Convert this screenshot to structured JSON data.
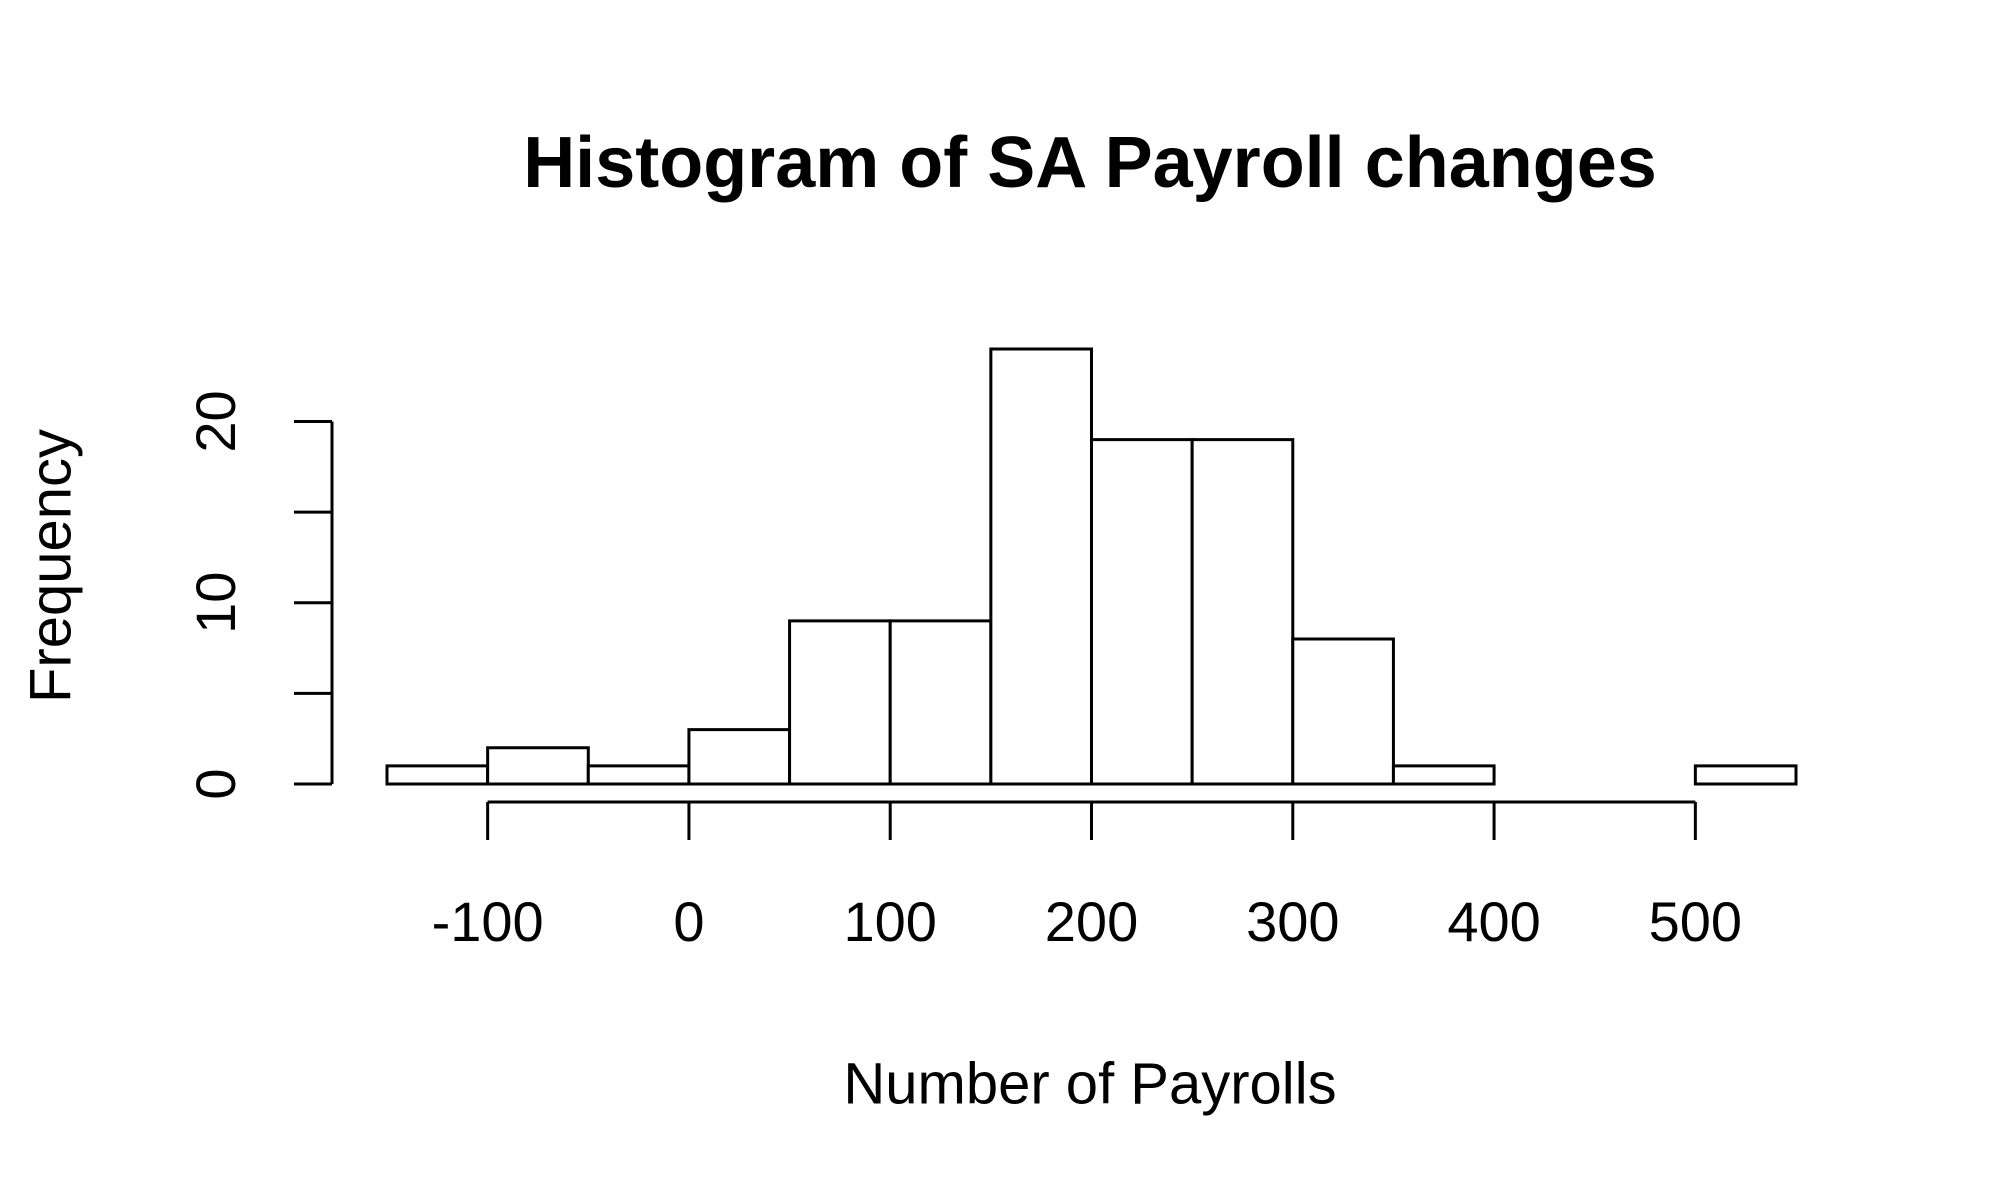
{
  "chart_data": {
    "type": "histogram",
    "title": "Histogram of SA Payroll changes",
    "x_label": "Number of Payrolls",
    "y_label": "Frequency",
    "bins": [
      -150,
      -100,
      -50,
      0,
      50,
      100,
      150,
      200,
      250,
      300,
      350,
      400,
      450,
      500,
      550
    ],
    "values": [
      1,
      2,
      1,
      3,
      9,
      9,
      24,
      19,
      19,
      8,
      1,
      0,
      0,
      1
    ],
    "color": "#ffffff",
    "edge_color": "#000000",
    "xlim": [
      -150,
      550
    ],
    "xticks": [
      -100,
      0,
      100,
      200,
      300,
      400,
      500
    ],
    "ylim": [
      0,
      24
    ],
    "yticks": [
      0,
      {
        "value": 5,
        "label": null
      },
      10,
      {
        "value": 15,
        "label": null
      },
      20
    ],
    "grid": false
  }
}
